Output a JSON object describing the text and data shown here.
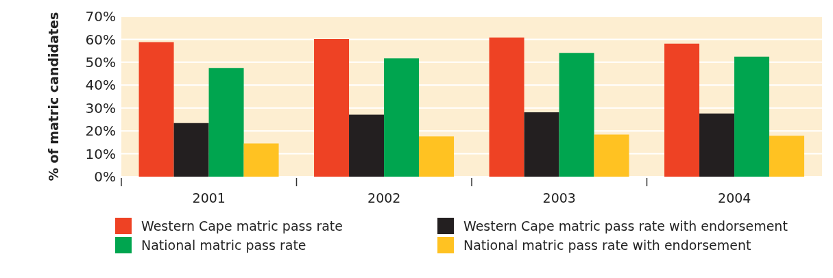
{
  "chart_data": {
    "type": "bar",
    "ylabel": "% of matric candidates",
    "categories": [
      "2001",
      "2002",
      "2003",
      "2004"
    ],
    "series": [
      {
        "name": "Western Cape matric pass rate",
        "color": "#ee4224",
        "values": [
          58.8,
          60.1,
          60.8,
          58.1
        ]
      },
      {
        "name": "Western Cape matric pass rate with endorsement",
        "color": "#231f20",
        "values": [
          23.4,
          27.1,
          28.1,
          27.6
        ]
      },
      {
        "name": "National matric pass rate",
        "color": "#00a54f",
        "values": [
          47.5,
          51.7,
          54.1,
          52.4
        ]
      },
      {
        "name": "National matric pass rate with endorsement",
        "color": "#ffc222",
        "values": [
          14.5,
          17.6,
          18.4,
          17.9
        ]
      }
    ],
    "ylim": [
      0,
      70
    ],
    "yticks": [
      {
        "value": 0,
        "label": "0%"
      },
      {
        "value": 10,
        "label": "10%"
      },
      {
        "value": 20,
        "label": "20%"
      },
      {
        "value": 30,
        "label": "30%"
      },
      {
        "value": 40,
        "label": "40%"
      },
      {
        "value": 50,
        "label": "50%"
      },
      {
        "value": 60,
        "label": "60%"
      },
      {
        "value": 70,
        "label": "70%"
      }
    ],
    "grid": "y",
    "legend": "bottom"
  }
}
